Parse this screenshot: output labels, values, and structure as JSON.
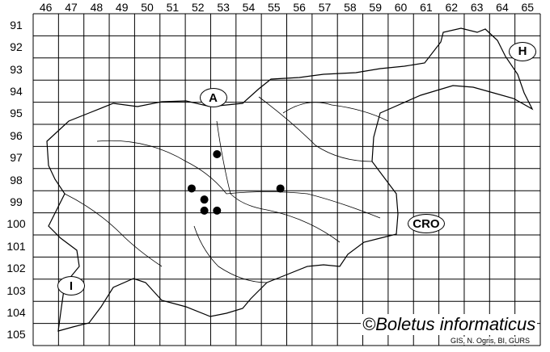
{
  "grid": {
    "columns": [
      "46",
      "47",
      "48",
      "49",
      "50",
      "51",
      "52",
      "53",
      "54",
      "55",
      "56",
      "57",
      "58",
      "59",
      "60",
      "61",
      "62",
      "63",
      "64",
      "65"
    ],
    "rows": [
      "91",
      "92",
      "93",
      "94",
      "95",
      "96",
      "97",
      "98",
      "99",
      "100",
      "101",
      "102",
      "103",
      "104",
      "105"
    ]
  },
  "country_labels": [
    {
      "text": "A",
      "col": 52.6,
      "row": 94.3
    },
    {
      "text": "H",
      "col": 64.8,
      "row": 92.2
    },
    {
      "text": "CRO",
      "col": 61.0,
      "row": 100.0
    },
    {
      "text": "I",
      "col": 47.0,
      "row": 102.8
    }
  ],
  "records": [
    {
      "col": 52.75,
      "row": 96.85
    },
    {
      "col": 51.75,
      "row": 98.4
    },
    {
      "col": 52.25,
      "row": 98.9
    },
    {
      "col": 52.25,
      "row": 99.4
    },
    {
      "col": 52.75,
      "row": 99.4
    },
    {
      "col": 55.25,
      "row": 98.4
    }
  ],
  "credit": "©Boletus informaticus",
  "source": "GIS, N. Ogris, BI, GURS"
}
